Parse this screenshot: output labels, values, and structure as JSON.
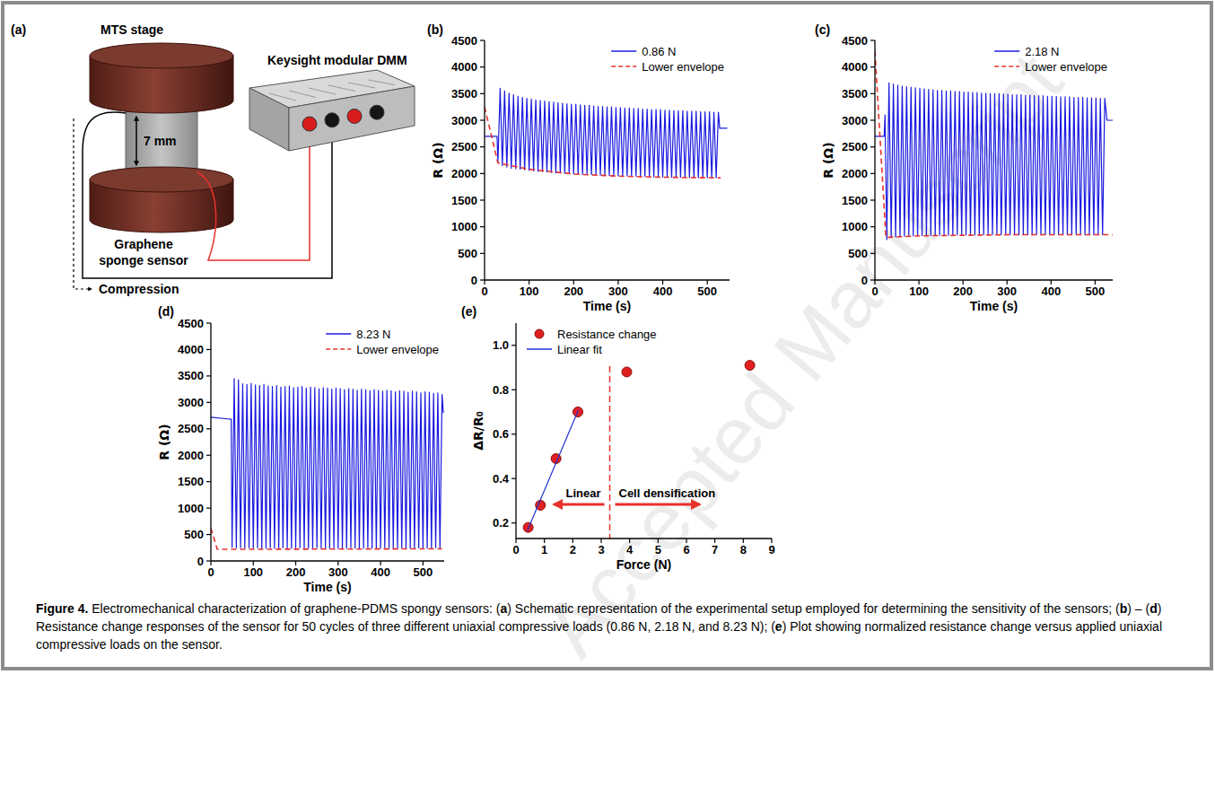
{
  "schematic": {
    "panel_label": "(a)",
    "top_label": "MTS stage",
    "device_label": "Keysight modular DMM",
    "gap_label": "7 mm",
    "sensor_label": "Graphene sponge sensor",
    "motion_label": "Compression"
  },
  "chart_data": [
    {
      "type": "line",
      "panel_label": "(b)",
      "x_label": "Time (s)",
      "y_label": "R (Ω)",
      "xlim": [
        0,
        550
      ],
      "xticks": [
        0,
        100,
        200,
        300,
        400,
        500
      ],
      "ylim": [
        0,
        4500
      ],
      "yticks": [
        0,
        500,
        1000,
        1500,
        2000,
        2500,
        3000,
        3500,
        4000,
        4500
      ],
      "legend": "upper right",
      "series": [
        {
          "name": "0.86 N",
          "color": "#1a1ae0",
          "line_style": "solid",
          "x": [
            0,
            28,
            30,
            35,
            40,
            45,
            50,
            55,
            60,
            65,
            70,
            75,
            80,
            85,
            90,
            95,
            100,
            105,
            110,
            115,
            120,
            125,
            130,
            135,
            140,
            145,
            150,
            155,
            160,
            165,
            170,
            175,
            180,
            185,
            190,
            195,
            200,
            205,
            210,
            215,
            220,
            225,
            230,
            235,
            240,
            245,
            250,
            255,
            260,
            265,
            270,
            275,
            280,
            285,
            290,
            295,
            300,
            305,
            310,
            315,
            320,
            325,
            330,
            335,
            340,
            345,
            350,
            355,
            360,
            365,
            370,
            375,
            380,
            385,
            390,
            395,
            400,
            405,
            410,
            415,
            420,
            425,
            430,
            435,
            440,
            445,
            450,
            455,
            460,
            465,
            470,
            475,
            480,
            485,
            490,
            495,
            500,
            505,
            510,
            515,
            520,
            525,
            528,
            545
          ],
          "values": [
            2700,
            2700,
            2200,
            3600,
            2150,
            3550,
            2120,
            3510,
            2100,
            3480,
            2090,
            3450,
            2080,
            3430,
            2070,
            3410,
            2060,
            3400,
            2050,
            3380,
            2040,
            3370,
            2035,
            3360,
            2030,
            3350,
            2020,
            3340,
            2015,
            3330,
            2010,
            3320,
            2005,
            3310,
            2000,
            3300,
            1995,
            3300,
            1990,
            3290,
            1985,
            3280,
            1980,
            3280,
            1980,
            3270,
            1975,
            3260,
            1970,
            3260,
            1970,
            3250,
            1965,
            3250,
            1960,
            3240,
            1960,
            3240,
            1955,
            3230,
            1955,
            3230,
            1950,
            3220,
            1950,
            3220,
            1945,
            3210,
            1945,
            3210,
            1940,
            3200,
            1940,
            3200,
            1940,
            3200,
            1935,
            3190,
            1935,
            3190,
            1930,
            3180,
            1930,
            3180,
            1930,
            3180,
            1925,
            3170,
            1925,
            3170,
            1925,
            3170,
            1920,
            3160,
            1920,
            3160,
            1920,
            3160,
            1920,
            3150,
            1920,
            3150,
            2850,
            2850
          ]
        },
        {
          "name": "Lower envelope",
          "color": "#e8322b",
          "line_style": "dashed",
          "x": [
            0,
            30,
            100,
            200,
            300,
            400,
            530
          ],
          "values": [
            3250,
            2200,
            2080,
            1990,
            1950,
            1930,
            1920
          ]
        }
      ]
    },
    {
      "type": "line",
      "panel_label": "(c)",
      "x_label": "Time (s)",
      "y_label": "R (Ω)",
      "xlim": [
        0,
        540
      ],
      "xticks": [
        0,
        100,
        200,
        300,
        400,
        500
      ],
      "ylim": [
        0,
        4500
      ],
      "yticks": [
        0,
        500,
        1000,
        1500,
        2000,
        2500,
        3000,
        3500,
        4000,
        4500
      ],
      "legend": "upper right",
      "series": [
        {
          "name": "2.18 N",
          "color": "#1a1ae0",
          "line_style": "solid",
          "x": [
            0,
            21,
            23,
            27,
            32,
            37,
            42,
            47,
            52,
            57,
            62,
            67,
            72,
            77,
            82,
            87,
            92,
            97,
            102,
            107,
            112,
            117,
            122,
            127,
            132,
            137,
            142,
            147,
            152,
            157,
            162,
            167,
            172,
            177,
            182,
            187,
            192,
            197,
            202,
            207,
            212,
            217,
            222,
            227,
            232,
            237,
            242,
            247,
            252,
            257,
            262,
            267,
            272,
            277,
            282,
            287,
            292,
            297,
            302,
            307,
            312,
            317,
            322,
            327,
            332,
            337,
            342,
            347,
            352,
            357,
            362,
            367,
            372,
            377,
            382,
            387,
            392,
            397,
            402,
            407,
            412,
            417,
            422,
            427,
            432,
            437,
            442,
            447,
            452,
            457,
            462,
            467,
            472,
            477,
            482,
            487,
            492,
            497,
            502,
            507,
            512,
            517,
            522,
            527,
            540
          ],
          "values": [
            2700,
            2700,
            3100,
            760,
            3700,
            800,
            3680,
            810,
            3660,
            820,
            3640,
            820,
            3630,
            830,
            3620,
            830,
            3610,
            830,
            3600,
            835,
            3590,
            835,
            3580,
            835,
            3570,
            840,
            3560,
            840,
            3560,
            840,
            3550,
            840,
            3550,
            840,
            3540,
            845,
            3540,
            845,
            3530,
            845,
            3530,
            845,
            3520,
            845,
            3520,
            845,
            3510,
            850,
            3510,
            850,
            3500,
            850,
            3500,
            850,
            3500,
            850,
            3490,
            850,
            3490,
            850,
            3480,
            850,
            3480,
            850,
            3480,
            850,
            3470,
            850,
            3470,
            850,
            3460,
            850,
            3460,
            850,
            3460,
            850,
            3450,
            850,
            3450,
            850,
            3450,
            850,
            3440,
            850,
            3440,
            850,
            3440,
            850,
            3430,
            850,
            3430,
            850,
            3430,
            850,
            3420,
            850,
            3420,
            850,
            3420,
            850,
            3410,
            850,
            3410,
            3000,
            3000
          ]
        },
        {
          "name": "Lower envelope",
          "color": "#e8322b",
          "line_style": "dashed",
          "x": [
            0,
            25,
            100,
            300,
            540
          ],
          "values": [
            4300,
            800,
            830,
            850,
            850
          ]
        }
      ]
    },
    {
      "type": "line",
      "panel_label": "(d)",
      "x_label": "Time (s)",
      "y_label": "R (Ω)",
      "xlim": [
        0,
        550
      ],
      "xticks": [
        0,
        100,
        200,
        300,
        400,
        500
      ],
      "ylim": [
        0,
        4500
      ],
      "yticks": [
        0,
        500,
        1000,
        1500,
        2000,
        2500,
        3000,
        3500,
        4000,
        4500
      ],
      "legend": "upper right",
      "series": [
        {
          "name": "8.23 N",
          "color": "#1a1ae0",
          "line_style": "solid",
          "x": [
            0,
            48,
            50,
            55,
            60,
            65,
            70,
            75,
            80,
            85,
            90,
            95,
            100,
            105,
            110,
            115,
            120,
            125,
            130,
            135,
            140,
            145,
            150,
            155,
            160,
            165,
            170,
            175,
            180,
            185,
            190,
            195,
            200,
            205,
            210,
            215,
            220,
            225,
            230,
            235,
            240,
            245,
            250,
            255,
            260,
            265,
            270,
            275,
            280,
            285,
            290,
            295,
            300,
            305,
            310,
            315,
            320,
            325,
            330,
            335,
            340,
            345,
            350,
            355,
            360,
            365,
            370,
            375,
            380,
            385,
            390,
            395,
            400,
            405,
            410,
            415,
            420,
            425,
            430,
            435,
            440,
            445,
            450,
            455,
            460,
            465,
            470,
            475,
            480,
            485,
            490,
            495,
            500,
            505,
            510,
            515,
            520,
            525,
            530,
            535,
            540,
            545,
            548
          ],
          "values": [
            2720,
            2680,
            260,
            3450,
            250,
            3430,
            250,
            3350,
            240,
            3340,
            250,
            3360,
            240,
            3330,
            250,
            3320,
            240,
            3340,
            240,
            3310,
            250,
            3300,
            240,
            3320,
            240,
            3290,
            250,
            3300,
            240,
            3310,
            240,
            3280,
            240,
            3290,
            250,
            3300,
            240,
            3270,
            240,
            3290,
            240,
            3280,
            250,
            3260,
            240,
            3280,
            240,
            3270,
            240,
            3250,
            250,
            3270,
            240,
            3260,
            240,
            3240,
            240,
            3260,
            250,
            3250,
            240,
            3230,
            240,
            3250,
            240,
            3240,
            250,
            3220,
            240,
            3240,
            240,
            3230,
            240,
            3210,
            250,
            3230,
            240,
            3220,
            240,
            3200,
            240,
            3220,
            250,
            3210,
            240,
            3190,
            240,
            3210,
            240,
            3200,
            250,
            3180,
            240,
            3200,
            240,
            3190,
            240,
            3170,
            250,
            3180,
            240,
            3150,
            2800
          ]
        },
        {
          "name": "Lower envelope",
          "color": "#e8322b",
          "line_style": "dashed",
          "x": [
            0,
            15,
            50,
            545
          ],
          "values": [
            620,
            220,
            220,
            230
          ]
        }
      ]
    },
    {
      "type": "scatter",
      "panel_label": "(e)",
      "x_label": "Force (N)",
      "y_label": "ΔR/R₀",
      "xlim": [
        0,
        9
      ],
      "xticks": [
        0,
        1,
        2,
        3,
        4,
        5,
        6,
        7,
        8,
        9
      ],
      "ylim": [
        0.13,
        1.1
      ],
      "yticks": [
        0.2,
        0.4,
        0.6,
        0.8,
        {
          "value": 1,
          "label": "1.0"
        }
      ],
      "legend": "upper left",
      "divider_x": 3.3,
      "annotations": [
        "Linear",
        "Cell densification"
      ],
      "series": [
        {
          "name": "Resistance change",
          "color": "#e02020",
          "marker": "circle",
          "x": [
            0.43,
            0.86,
            1.41,
            2.18,
            3.9,
            8.23
          ],
          "values": [
            0.18,
            0.28,
            0.49,
            0.7,
            0.88,
            0.91
          ]
        },
        {
          "name": "Linear fit",
          "type": "line",
          "color": "#2030d0",
          "line_style": "solid",
          "x": [
            0.4,
            2.2
          ],
          "values": [
            0.165,
            0.71
          ]
        }
      ]
    }
  ],
  "caption": {
    "label": "Figure 4.",
    "text": "Electromechanical characterization of graphene-PDMS spongy sensors: (a) Schematic representation of the experimental setup employed for determining the sensitivity of the sensors; (b) – (d) Resistance change responses of the sensor for 50 cycles of three different uniaxial compressive loads (0.86 N, 2.18 N, and 8.23 N); (e) Plot showing normalized resistance change versus applied uniaxial compressive loads on the sensor."
  },
  "watermark": "Accepted Manuscript"
}
